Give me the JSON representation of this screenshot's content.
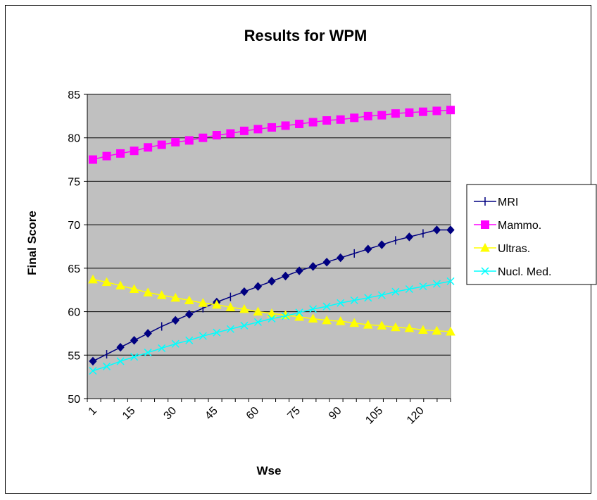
{
  "chart_data": {
    "type": "line",
    "title": "Results for WPM",
    "xlabel": "Wse",
    "ylabel": "Final Score",
    "x": [
      1,
      6,
      11,
      16,
      21,
      26,
      31,
      36,
      41,
      46,
      51,
      56,
      61,
      66,
      71,
      76,
      81,
      86,
      91,
      96,
      101,
      106,
      111,
      116,
      121,
      126,
      131
    ],
    "x_tick_labels": [
      "1",
      "15",
      "30",
      "45",
      "60",
      "75",
      "90",
      "105",
      "120"
    ],
    "x_tick_values": [
      1,
      15,
      30,
      45,
      60,
      75,
      90,
      105,
      120
    ],
    "xlim": [
      1,
      131
    ],
    "ylim": [
      50,
      85
    ],
    "y_ticks": [
      50,
      55,
      60,
      65,
      70,
      75,
      80,
      85
    ],
    "grid": true,
    "plot_background": "#c0c0c0",
    "legend_position": "right",
    "series": [
      {
        "name": "MRI",
        "color": "#000080",
        "marker": "diamond",
        "values": [
          54.3,
          55.1,
          55.9,
          56.7,
          57.5,
          58.3,
          59.0,
          59.7,
          60.4,
          61.1,
          61.7,
          62.3,
          62.9,
          63.5,
          64.1,
          64.7,
          65.2,
          65.7,
          66.2,
          66.7,
          67.2,
          67.7,
          68.2,
          68.6,
          69.0,
          69.4,
          69.4
        ]
      },
      {
        "name": "Mammo.",
        "color": "#ff00ff",
        "marker": "square",
        "values": [
          77.5,
          77.9,
          78.2,
          78.5,
          78.9,
          79.2,
          79.5,
          79.7,
          80.0,
          80.3,
          80.5,
          80.8,
          81.0,
          81.2,
          81.4,
          81.6,
          81.8,
          82.0,
          82.1,
          82.3,
          82.5,
          82.6,
          82.8,
          82.9,
          83.0,
          83.1,
          83.2
        ]
      },
      {
        "name": "Ultras.",
        "color": "#ffff00",
        "marker": "triangle",
        "values": [
          63.7,
          63.4,
          63.0,
          62.6,
          62.2,
          61.9,
          61.6,
          61.3,
          61.0,
          60.8,
          60.5,
          60.3,
          60.0,
          59.8,
          59.6,
          59.4,
          59.2,
          59.0,
          58.9,
          58.7,
          58.5,
          58.4,
          58.2,
          58.1,
          57.9,
          57.8,
          57.7
        ]
      },
      {
        "name": "Nucl. Med.",
        "color": "#00ffff",
        "marker": "x",
        "values": [
          53.2,
          53.7,
          54.3,
          54.8,
          55.3,
          55.8,
          56.3,
          56.7,
          57.2,
          57.6,
          58.0,
          58.4,
          58.8,
          59.2,
          59.5,
          59.9,
          60.3,
          60.6,
          61.0,
          61.3,
          61.6,
          61.9,
          62.3,
          62.6,
          62.9,
          63.2,
          63.5
        ]
      }
    ]
  }
}
